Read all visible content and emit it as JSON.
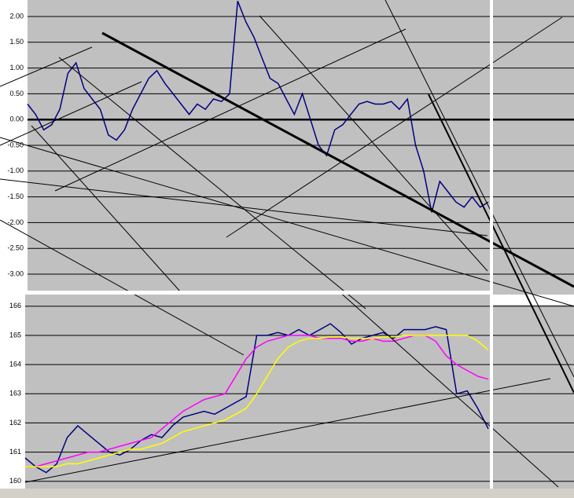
{
  "chart_data": [
    {
      "type": "line",
      "ylim": [
        -3.32,
        2.32
      ],
      "yticks": [
        {
          "value": -3,
          "label": "-3.00"
        },
        {
          "value": -2.5,
          "label": "-2.50"
        },
        {
          "value": -2,
          "label": "-2.00"
        },
        {
          "value": -1.5,
          "label": "-1.50"
        },
        {
          "value": -1,
          "label": "-1.00"
        },
        {
          "value": -0.5,
          "label": "-0.50"
        },
        {
          "value": 0,
          "label": "0.00"
        },
        {
          "value": 0.5,
          "label": "0.50"
        },
        {
          "value": 1,
          "label": "1.00"
        },
        {
          "value": 1.5,
          "label": "1.50"
        },
        {
          "value": 2,
          "label": "2.00"
        }
      ],
      "grid": true,
      "series": [
        {
          "color": "#000080",
          "values": [
            0.3,
            0.1,
            -0.2,
            -0.1,
            0.2,
            0.9,
            1.1,
            0.6,
            0.4,
            0.2,
            -0.3,
            -0.4,
            -0.2,
            0.2,
            0.5,
            0.8,
            0.95,
            0.7,
            0.5,
            0.3,
            0.1,
            0.3,
            0.2,
            0.4,
            0.35,
            0.5,
            2.3,
            1.9,
            1.6,
            1.2,
            0.8,
            0.7,
            0.4,
            0.1,
            0.5,
            0.0,
            -0.5,
            -0.7,
            -0.2,
            -0.1,
            0.1,
            0.3,
            0.35,
            0.3,
            0.3,
            0.35,
            0.2,
            0.4,
            -0.5,
            -1.0,
            -1.8,
            -1.2,
            -1.4,
            -1.6,
            -1.7,
            -1.5,
            -1.7,
            -1.6
          ]
        }
      ]
    },
    {
      "type": "line",
      "ylim": [
        159.75,
        166.4
      ],
      "yticks": [
        160,
        161,
        162,
        163,
        164,
        165,
        166
      ],
      "grid": true,
      "series": [
        {
          "color": "#000080",
          "values": [
            160.8,
            160.5,
            160.3,
            160.6,
            161.5,
            161.9,
            161.6,
            161.3,
            161.0,
            160.9,
            161.1,
            161.4,
            161.6,
            161.5,
            161.9,
            162.2,
            162.3,
            162.4,
            162.3,
            162.5,
            162.7,
            162.9,
            165.0,
            165.0,
            165.1,
            165.0,
            165.2,
            165.0,
            165.2,
            165.4,
            165.1,
            164.7,
            164.9,
            165.0,
            165.1,
            164.9,
            165.2,
            165.2,
            165.2,
            165.3,
            165.2,
            163.0,
            163.1,
            162.5,
            161.8
          ]
        },
        {
          "color": "#ff00ff",
          "values": [
            160.5,
            160.5,
            160.6,
            160.7,
            160.8,
            160.9,
            161.0,
            161.0,
            161.1,
            161.2,
            161.3,
            161.4,
            161.5,
            161.8,
            162.1,
            162.4,
            162.6,
            162.8,
            162.9,
            163.0,
            163.6,
            164.2,
            164.6,
            164.8,
            164.9,
            165.0,
            165.0,
            165.0,
            164.9,
            164.9,
            164.9,
            164.8,
            164.8,
            164.9,
            164.8,
            164.8,
            164.9,
            165.0,
            165.0,
            164.8,
            164.3,
            164.0,
            163.8,
            163.6,
            163.5
          ]
        },
        {
          "color": "#ffff00",
          "values": [
            160.5,
            160.5,
            160.5,
            160.5,
            160.6,
            160.6,
            160.7,
            160.8,
            160.9,
            161.0,
            161.1,
            161.1,
            161.2,
            161.3,
            161.5,
            161.7,
            161.8,
            161.9,
            162.0,
            162.1,
            162.3,
            162.5,
            163.0,
            163.6,
            164.2,
            164.6,
            164.8,
            164.9,
            164.9,
            164.95,
            164.95,
            164.9,
            164.9,
            164.9,
            164.95,
            164.95,
            165.0,
            165.0,
            165.0,
            165.0,
            165.0,
            165.0,
            165.0,
            164.8,
            164.5
          ]
        }
      ]
    }
  ]
}
